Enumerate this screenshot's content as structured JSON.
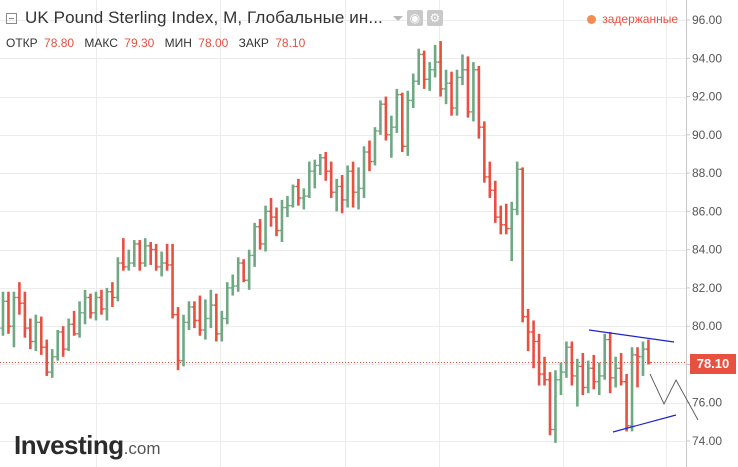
{
  "header": {
    "title": "UK Pound Sterling Index, M, Глобальные ин...",
    "ohlc": {
      "open_label": "ОТКР",
      "open": "78.80",
      "high_label": "МАКС",
      "high": "79.30",
      "low_label": "МИН",
      "low": "78.00",
      "close_label": "ЗАКР",
      "close": "78.10"
    },
    "delayed_label": "задержанные"
  },
  "current_price": "78.10",
  "logo": {
    "brand": "Investing",
    "suffix": ".com"
  },
  "colors": {
    "up": "#6fa883",
    "down": "#e8503f",
    "trendline": "#1c24c8",
    "sketch": "#555555",
    "price": "#e8503f"
  },
  "chart_data": {
    "type": "ohlc",
    "y_ticks": [
      "96.00",
      "94.00",
      "92.00",
      "90.00",
      "88.00",
      "86.00",
      "84.00",
      "82.00",
      "80.00",
      "78.00",
      "76.00",
      "74.00"
    ],
    "ylim": [
      73.4,
      96.4
    ],
    "grid": true,
    "last_price": 78.1,
    "bars": [
      [
        79.9,
        81.8,
        79.5,
        81.3
      ],
      [
        81.3,
        81.8,
        79.6,
        80.0
      ],
      [
        80.0,
        81.8,
        78.9,
        81.5
      ],
      [
        81.5,
        82.3,
        80.6,
        81.2
      ],
      [
        81.2,
        81.8,
        79.4,
        79.9
      ],
      [
        79.9,
        80.4,
        78.8,
        79.2
      ],
      [
        79.2,
        80.6,
        78.7,
        80.2
      ],
      [
        80.2,
        80.5,
        78.5,
        78.9
      ],
      [
        78.9,
        79.3,
        77.4,
        77.6
      ],
      [
        77.6,
        78.8,
        77.3,
        78.4
      ],
      [
        78.4,
        79.8,
        78.2,
        79.7
      ],
      [
        79.7,
        80.0,
        78.4,
        78.8
      ],
      [
        78.8,
        80.4,
        78.7,
        80.1
      ],
      [
        80.1,
        80.8,
        79.5,
        79.6
      ],
      [
        79.6,
        81.3,
        79.4,
        80.7
      ],
      [
        80.7,
        81.9,
        80.1,
        81.5
      ],
      [
        81.5,
        81.7,
        80.4,
        80.7
      ],
      [
        80.7,
        81.8,
        80.3,
        81.5
      ],
      [
        81.5,
        81.9,
        80.6,
        80.9
      ],
      [
        80.9,
        82.0,
        80.3,
        81.8
      ],
      [
        81.8,
        82.3,
        81.0,
        81.5
      ],
      [
        81.5,
        83.6,
        81.3,
        83.3
      ],
      [
        83.3,
        84.6,
        82.9,
        83.1
      ],
      [
        83.1,
        84.0,
        82.9,
        83.3
      ],
      [
        83.3,
        84.5,
        83.1,
        84.3
      ],
      [
        84.3,
        84.5,
        82.9,
        83.3
      ],
      [
        83.3,
        84.6,
        83.1,
        84.2
      ],
      [
        84.2,
        84.4,
        83.2,
        84.0
      ],
      [
        84.0,
        84.3,
        82.9,
        83.1
      ],
      [
        83.1,
        83.9,
        82.6,
        83.3
      ],
      [
        83.3,
        84.3,
        82.9,
        83.2
      ],
      [
        83.2,
        84.3,
        80.4,
        80.6
      ],
      [
        80.6,
        81.0,
        77.7,
        78.2
      ],
      [
        78.2,
        80.6,
        77.9,
        80.2
      ],
      [
        80.2,
        81.3,
        79.8,
        81.0
      ],
      [
        81.0,
        81.3,
        79.9,
        80.3
      ],
      [
        80.3,
        81.6,
        79.5,
        79.8
      ],
      [
        79.8,
        81.4,
        79.3,
        80.4
      ],
      [
        80.4,
        81.9,
        79.9,
        81.1
      ],
      [
        81.1,
        81.7,
        79.2,
        79.6
      ],
      [
        79.6,
        80.8,
        79.2,
        80.4
      ],
      [
        80.4,
        82.3,
        80.1,
        82.0
      ],
      [
        82.0,
        82.7,
        81.6,
        82.1
      ],
      [
        82.1,
        83.6,
        81.8,
        83.3
      ],
      [
        83.3,
        83.5,
        82.3,
        82.4
      ],
      [
        82.4,
        84.0,
        81.9,
        83.7
      ],
      [
        83.7,
        85.4,
        83.1,
        85.2
      ],
      [
        85.2,
        85.6,
        84.0,
        84.3
      ],
      [
        84.3,
        86.3,
        83.9,
        86.0
      ],
      [
        86.0,
        86.7,
        85.2,
        85.7
      ],
      [
        85.7,
        86.2,
        84.7,
        85.0
      ],
      [
        85.0,
        86.6,
        84.4,
        86.2
      ],
      [
        86.2,
        86.8,
        85.7,
        86.3
      ],
      [
        86.3,
        87.4,
        86.2,
        87.3
      ],
      [
        87.3,
        87.7,
        86.3,
        86.7
      ],
      [
        86.7,
        87.2,
        86.1,
        86.8
      ],
      [
        86.8,
        88.6,
        86.7,
        88.1
      ],
      [
        88.1,
        88.7,
        87.2,
        88.4
      ],
      [
        88.4,
        89.0,
        87.9,
        88.8
      ],
      [
        88.8,
        89.1,
        87.6,
        88.1
      ],
      [
        88.1,
        88.6,
        86.7,
        87.0
      ],
      [
        87.0,
        87.7,
        86.0,
        87.3
      ],
      [
        87.3,
        87.9,
        85.9,
        86.6
      ],
      [
        86.6,
        88.4,
        86.2,
        88.1
      ],
      [
        88.1,
        88.6,
        86.2,
        87.0
      ],
      [
        87.0,
        88.3,
        86.1,
        87.2
      ],
      [
        87.2,
        89.4,
        86.7,
        89.1
      ],
      [
        89.1,
        89.7,
        88.1,
        88.6
      ],
      [
        88.6,
        90.4,
        88.4,
        90.2
      ],
      [
        90.2,
        91.8,
        90.0,
        91.6
      ],
      [
        91.6,
        92.0,
        89.7,
        90.0
      ],
      [
        90.0,
        91.0,
        88.8,
        90.4
      ],
      [
        90.4,
        92.4,
        90.1,
        92.1
      ],
      [
        92.1,
        92.2,
        89.1,
        89.4
      ],
      [
        89.4,
        92.3,
        88.9,
        91.8
      ],
      [
        91.8,
        93.2,
        91.4,
        92.8
      ],
      [
        92.8,
        94.5,
        92.6,
        94.2
      ],
      [
        94.2,
        94.4,
        92.4,
        92.9
      ],
      [
        92.9,
        93.8,
        92.3,
        93.4
      ],
      [
        93.4,
        94.7,
        93.0,
        93.8
      ],
      [
        93.8,
        94.9,
        92.0,
        92.4
      ],
      [
        92.4,
        93.4,
        91.6,
        92.7
      ],
      [
        92.7,
        93.3,
        91.0,
        91.4
      ],
      [
        91.4,
        93.4,
        91.0,
        93.0
      ],
      [
        93.0,
        94.2,
        92.6,
        93.4
      ],
      [
        93.4,
        94.1,
        90.9,
        91.2
      ],
      [
        91.2,
        93.8,
        90.7,
        93.4
      ],
      [
        93.4,
        93.6,
        89.8,
        90.4
      ],
      [
        90.4,
        90.7,
        87.5,
        87.8
      ],
      [
        87.8,
        88.6,
        86.7,
        87.1
      ],
      [
        87.1,
        87.6,
        85.4,
        85.7
      ],
      [
        85.7,
        86.3,
        84.8,
        85.3
      ],
      [
        85.3,
        86.4,
        84.8,
        85.1
      ],
      [
        85.1,
        86.5,
        83.4,
        86.1
      ],
      [
        86.1,
        88.6,
        85.8,
        88.2
      ],
      [
        88.2,
        88.3,
        80.2,
        80.5
      ],
      [
        80.5,
        80.9,
        78.7,
        79.7
      ],
      [
        79.7,
        80.3,
        77.8,
        79.2
      ],
      [
        79.2,
        79.6,
        76.9,
        77.5
      ],
      [
        77.5,
        78.4,
        76.9,
        77.2
      ],
      [
        77.2,
        77.6,
        74.3,
        74.6
      ],
      [
        74.6,
        77.7,
        73.9,
        77.2
      ],
      [
        77.2,
        78.1,
        76.4,
        77.6
      ],
      [
        77.6,
        79.2,
        77.3,
        78.9
      ],
      [
        78.9,
        79.2,
        76.9,
        77.4
      ],
      [
        77.4,
        78.3,
        75.8,
        77.9
      ],
      [
        77.9,
        78.6,
        76.4,
        76.8
      ],
      [
        76.8,
        78.2,
        76.5,
        77.8
      ],
      [
        77.8,
        78.5,
        76.7,
        77.1
      ],
      [
        77.1,
        78.1,
        76.4,
        77.4
      ],
      [
        77.4,
        79.6,
        77.2,
        79.3
      ],
      [
        79.3,
        79.7,
        76.5,
        77.3
      ],
      [
        77.3,
        78.4,
        76.8,
        77.8
      ],
      [
        77.8,
        78.6,
        76.9,
        77.1
      ],
      [
        77.1,
        77.5,
        74.5,
        74.8
      ],
      [
        74.8,
        78.9,
        74.5,
        78.5
      ],
      [
        78.5,
        78.9,
        76.8,
        78.4
      ],
      [
        78.4,
        79.2,
        77.4,
        78.8
      ],
      [
        78.8,
        79.3,
        78.0,
        78.1
      ]
    ]
  }
}
